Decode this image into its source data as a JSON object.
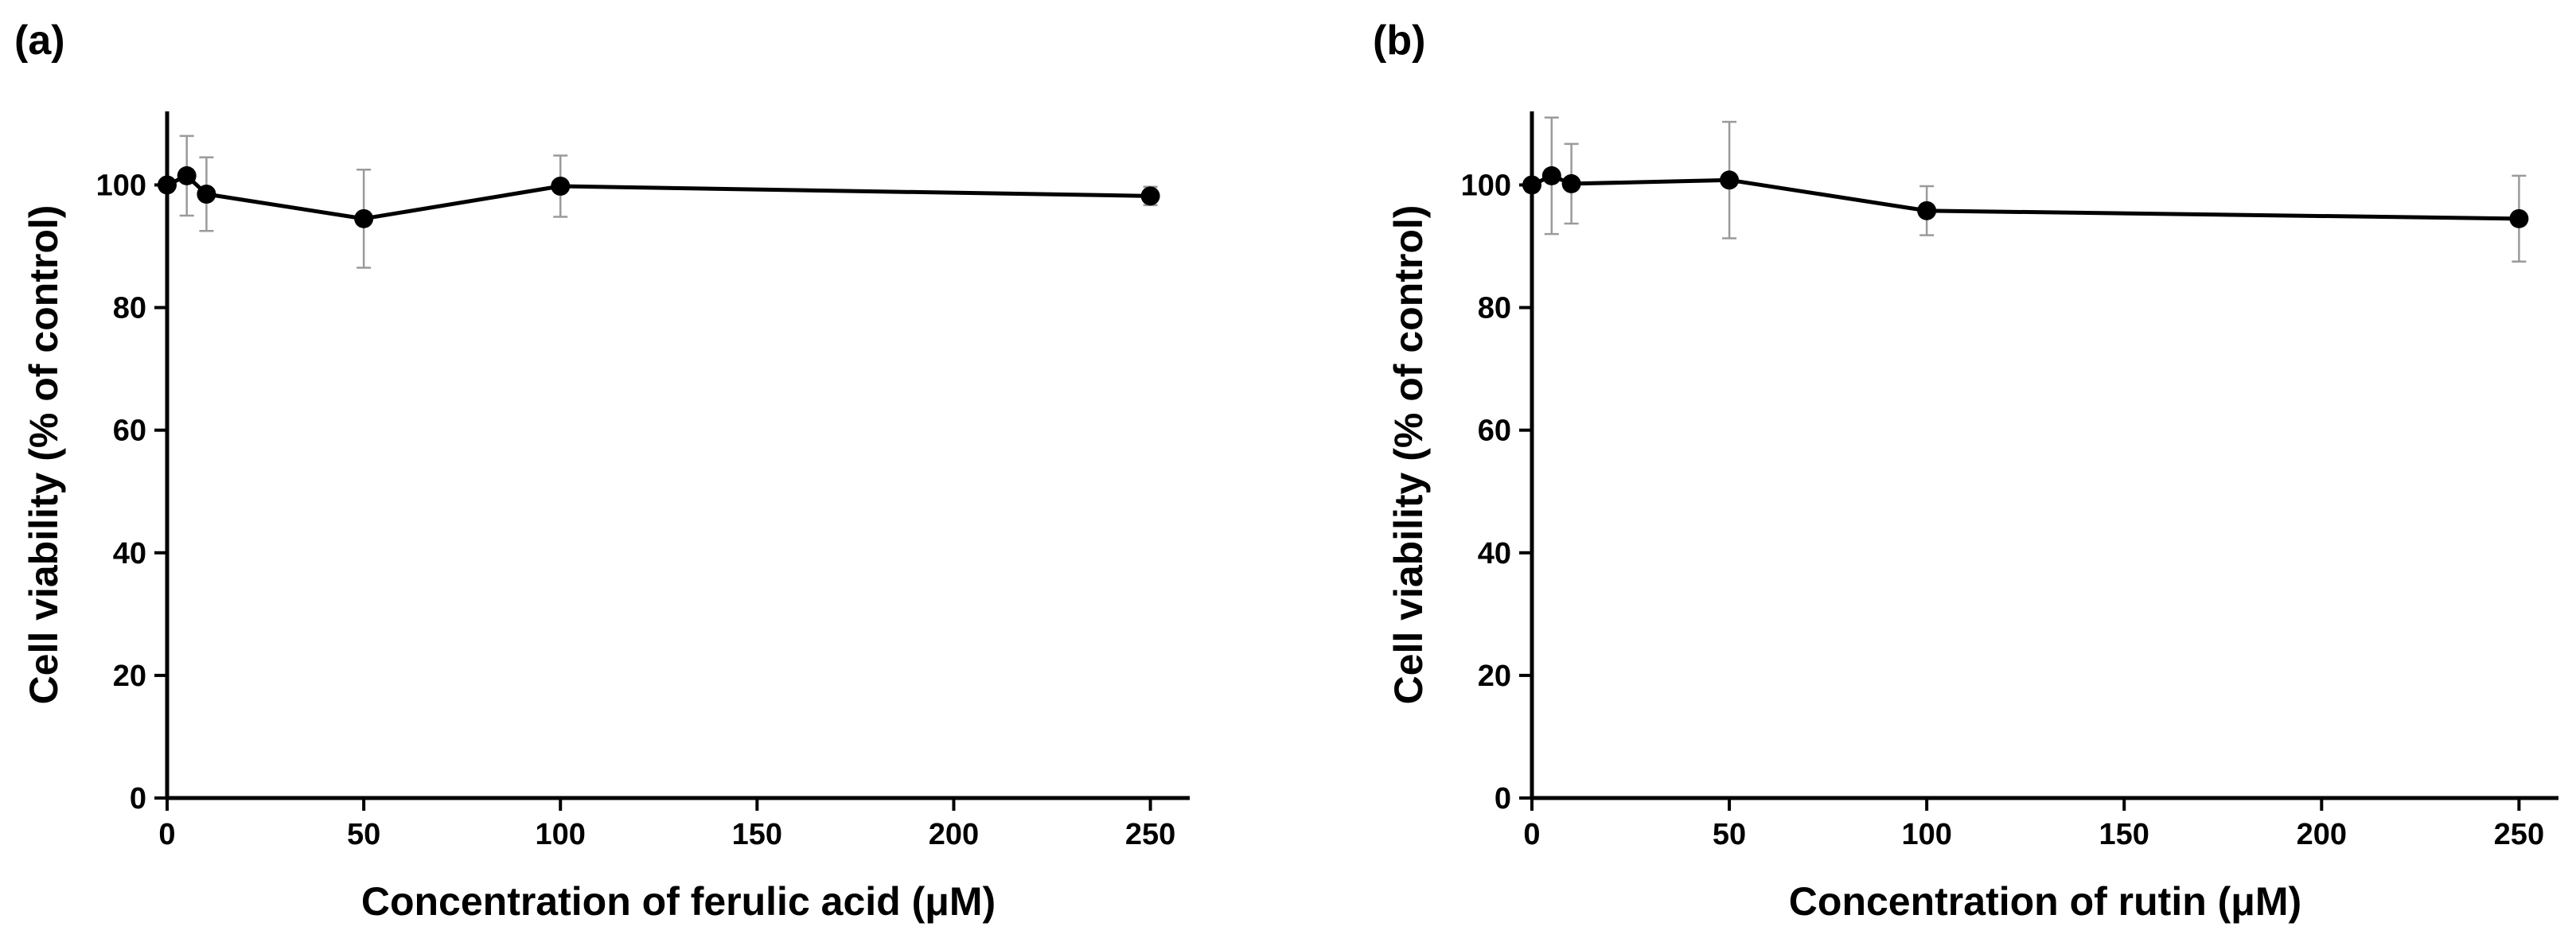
{
  "chart_data": [
    {
      "type": "line",
      "panel_label": "(a)",
      "xlabel": "Concentration of ferulic acid (μM)",
      "ylabel": "Cell viability (% of control)",
      "xlim": [
        0,
        260
      ],
      "ylim": [
        0,
        112
      ],
      "x_ticks": [
        0,
        50,
        100,
        150,
        200,
        250
      ],
      "y_ticks": [
        0,
        20,
        40,
        60,
        80,
        100
      ],
      "series": [
        {
          "x": [
            0,
            5,
            10,
            50,
            100,
            250
          ],
          "y": [
            100,
            101.5,
            98.5,
            94.5,
            99.8,
            98.2
          ],
          "error": [
            0,
            6.5,
            6,
            8,
            5,
            1.5
          ]
        }
      ]
    },
    {
      "type": "line",
      "panel_label": "(b)",
      "xlabel": "Concentration of rutin (μM)",
      "ylabel": "Cell viability (% of control)",
      "xlim": [
        0,
        260
      ],
      "ylim": [
        0,
        112
      ],
      "x_ticks": [
        0,
        50,
        100,
        150,
        200,
        250
      ],
      "y_ticks": [
        0,
        20,
        40,
        60,
        80,
        100
      ],
      "series": [
        {
          "x": [
            0,
            5,
            10,
            50,
            100,
            250
          ],
          "y": [
            100,
            101.5,
            100.2,
            100.8,
            95.8,
            94.5
          ],
          "error": [
            0,
            9.5,
            6.5,
            9.5,
            4,
            7
          ]
        }
      ]
    }
  ]
}
